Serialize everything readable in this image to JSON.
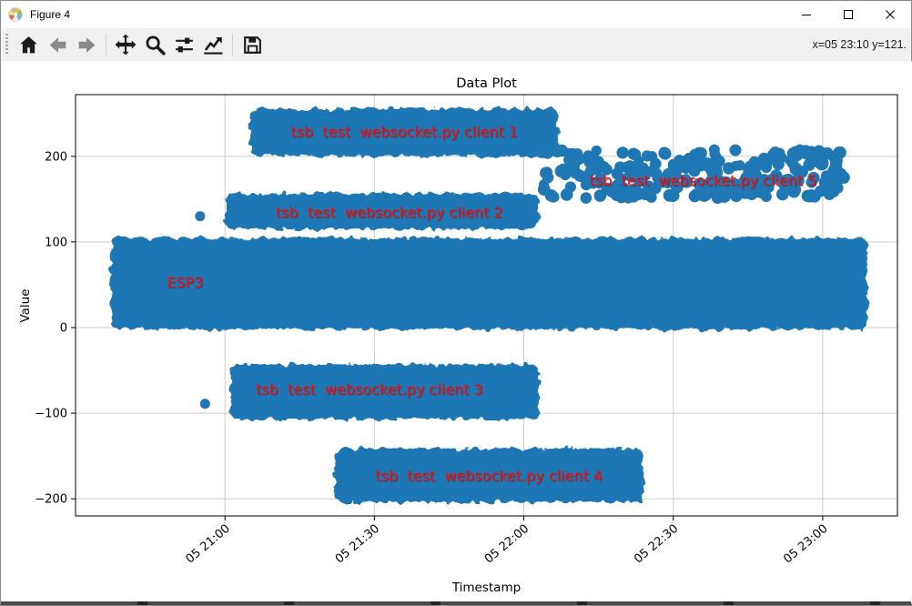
{
  "window": {
    "title": "Figure 4",
    "controls": [
      "minimize",
      "maximize",
      "close"
    ]
  },
  "toolbar": {
    "status": "x=05 23:10 y=121.",
    "buttons": [
      {
        "name": "home",
        "enabled": true
      },
      {
        "name": "back",
        "enabled": false
      },
      {
        "name": "forward",
        "enabled": false
      },
      {
        "name": "pan",
        "enabled": true
      },
      {
        "name": "zoom",
        "enabled": true
      },
      {
        "name": "subplots",
        "enabled": true
      },
      {
        "name": "customize",
        "enabled": true
      },
      {
        "name": "save",
        "enabled": true
      }
    ]
  },
  "chart_data": {
    "type": "scatter",
    "title": "Data Plot",
    "xlabel": "Timestamp",
    "ylabel": "Value",
    "xlim": [
      "20:30",
      "23:15"
    ],
    "ylim": [
      -220,
      272
    ],
    "grid": true,
    "x_ticks": [
      {
        "time": "21:00",
        "label": "05 21:00"
      },
      {
        "time": "21:30",
        "label": "05 21:30"
      },
      {
        "time": "22:00",
        "label": "05 22:00"
      },
      {
        "time": "22:30",
        "label": "05 22:30"
      },
      {
        "time": "23:00",
        "label": "05 23:00"
      }
    ],
    "y_ticks": [
      200,
      100,
      0,
      -100,
      -200
    ],
    "colors": {
      "point": "#1f77b4",
      "annotation": "#ee1111",
      "grid": "#cccccc"
    },
    "series": [
      {
        "id": "client-1",
        "label": "tsb  test  websocket.py client 1",
        "style": "solid",
        "x_start": "21:05",
        "x_end": "22:07",
        "y_min": 200,
        "y_max": 256,
        "label_x": "21:36",
        "label_y": 228
      },
      {
        "id": "client-5",
        "label": "tsb  test  websocket.py client 5",
        "style": "sparse",
        "x_start": "22:04",
        "x_end": "23:05",
        "y_min": 151,
        "y_max": 208,
        "label_x": "22:36",
        "label_y": 171
      },
      {
        "id": "client-2",
        "label": "tsb  test  websocket.py client 2",
        "style": "solid",
        "x_start": "21:00",
        "x_end": "22:03",
        "y_min": 115,
        "y_max": 157,
        "label_x": "21:33",
        "label_y": 134
      },
      {
        "id": "esp3",
        "label": "ESP3",
        "style": "solid",
        "x_start": "20:37",
        "x_end": "23:09",
        "y_min": -2,
        "y_max": 105,
        "label_x": "20:52",
        "label_y": 52
      },
      {
        "id": "client-3",
        "label": "tsb  test  websocket.py client 3",
        "style": "solid",
        "x_start": "21:01",
        "x_end": "22:03",
        "y_min": -107,
        "y_max": -43,
        "label_x": "21:29",
        "label_y": -73
      },
      {
        "id": "client-4",
        "label": "tsb  test  websocket.py client 4",
        "style": "solid",
        "x_start": "21:22",
        "x_end": "22:24",
        "y_min": -204,
        "y_max": -141,
        "label_x": "21:53",
        "label_y": -174
      }
    ],
    "outlier_points": [
      {
        "x": "20:55",
        "y": 130
      },
      {
        "x": "20:56",
        "y": -89
      }
    ]
  }
}
